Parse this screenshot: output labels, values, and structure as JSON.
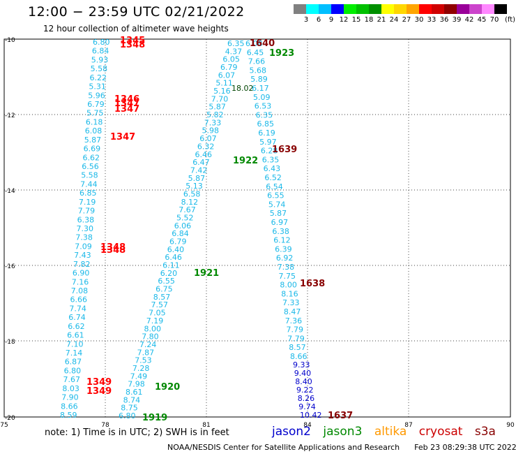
{
  "header": {
    "title": "12:00 − 23:59 UTC 02/21/2022",
    "subtitle": "12 hour collection of altimeter wave heights"
  },
  "legend": {
    "unit": "(ft)",
    "colors": [
      "#808080",
      "#00ffff",
      "#00bfff",
      "#0000ff",
      "#00ee00",
      "#00c000",
      "#009000",
      "#ffff00",
      "#ffd700",
      "#ffa500",
      "#ff0000",
      "#d00000",
      "#900000",
      "#990099",
      "#cc44cc",
      "#ff88ff",
      "#000000"
    ],
    "labels": [
      "3",
      "6",
      "9",
      "12",
      "15",
      "18",
      "21",
      "24",
      "27",
      "30",
      "33",
      "36",
      "39",
      "42",
      "45",
      "70"
    ]
  },
  "axes": {
    "lat_labels": [
      "-10",
      "-12",
      "-14",
      "-16",
      "-18",
      "-20"
    ],
    "lon_labels": [
      "75",
      "78",
      "81",
      "84",
      "87",
      "90"
    ]
  },
  "satellites": [
    {
      "name": "jason2",
      "color": "#0000cc"
    },
    {
      "name": "jason3",
      "color": "#008800"
    },
    {
      "name": "altika",
      "color": "#ff9900"
    },
    {
      "name": "cryosat",
      "color": "#cc0000"
    },
    {
      "name": "s3a",
      "color": "#880000"
    }
  ],
  "footer": {
    "note": "note: 1) Time is in UTC; 2) SWH is in feet",
    "credit": "NOAA/NESDIS Center for Satellite Applications and Research",
    "generated": "Feb 23 08:29:38 UTC 2022"
  },
  "tracks": {
    "left_cyan": {
      "color": "#1ab8e8",
      "labels": [
        "6.80",
        "6.84",
        "5.93",
        "5.58",
        "6.22",
        "5.31",
        "5.96",
        "6.79",
        "5.75",
        "6.18",
        "6.08",
        "5.87",
        "6.69",
        "6.62",
        "6.56",
        "5.58",
        "7.44",
        "6.85",
        "7.19",
        "7.79",
        "6.38",
        "7.30",
        "7.38",
        "7.09",
        "7.43",
        "7.82",
        "6.90",
        "7.16",
        "7.08",
        "6.66",
        "7.74",
        "6.74",
        "6.62",
        "6.61",
        "7.10",
        "7.14",
        "6.87",
        "6.80",
        "7.67",
        "8.03",
        "7.90",
        "8.66",
        "8.59"
      ]
    },
    "left_red": {
      "color": "#ff0000",
      "labels": [
        "1345",
        "1348",
        "1346",
        "1347",
        "1347",
        "1347",
        "1348",
        "1348",
        "1349",
        "1349"
      ]
    },
    "diag_left": {
      "color": "#1ab8e8",
      "labels": [
        "6.80",
        "8.75",
        "8.74",
        "8.61",
        "7.98",
        "7.49",
        "7.28",
        "7.53",
        "7.87",
        "7.24",
        "7.80",
        "8.00",
        "7.19",
        "7.05",
        "7.57",
        "8.57",
        "6.75",
        "6.55",
        "6.20",
        "6.11",
        "6.46",
        "6.40",
        "6.79",
        "6.84",
        "6.06",
        "5.52",
        "7.67",
        "8.12",
        "6.58",
        "5.13",
        "5.87",
        "7.42",
        "6.47",
        "6.46",
        "6.32",
        "6.07",
        "5.98",
        "7.33",
        "5.82",
        "5.87",
        "7.70",
        "5.16",
        "5.11",
        "6.07",
        "6.79",
        "6.05",
        "4.37",
        "6.35"
      ]
    },
    "diag_right": {
      "color": "#1ab8e8",
      "labels": [
        "6.08",
        "6.45",
        "7.66",
        "5.68",
        "5.89",
        "6.17",
        "5.09",
        "6.53",
        "6.35",
        "6.85",
        "6.19",
        "5.97",
        "6.28",
        "6.35",
        "6.43",
        "6.52",
        "6.54",
        "6.55",
        "5.74",
        "5.87",
        "6.97",
        "6.38",
        "6.12",
        "6.39",
        "6.92",
        "7.38",
        "7.75",
        "8.00",
        "8.16",
        "7.33",
        "8.47",
        "7.36",
        "7.79",
        "7.79",
        "8.57",
        "8.66"
      ]
    },
    "diag_right_blue": {
      "color": "#0000cc",
      "labels": [
        "9.33",
        "9.40",
        "8.40",
        "9.22",
        "8.26",
        "9.74",
        "10.42"
      ]
    },
    "time_tags": [
      {
        "text": "1640",
        "color": "#880000"
      },
      {
        "text": "1923",
        "color": "#008800"
      },
      {
        "text": "18.02",
        "color": "#004400"
      },
      {
        "text": "1639",
        "color": "#880000"
      },
      {
        "text": "1922",
        "color": "#008800"
      },
      {
        "text": "1921",
        "color": "#008800"
      },
      {
        "text": "1638",
        "color": "#880000"
      },
      {
        "text": "1920",
        "color": "#008800"
      },
      {
        "text": "1919",
        "color": "#008800"
      },
      {
        "text": "1637",
        "color": "#880000"
      }
    ]
  }
}
